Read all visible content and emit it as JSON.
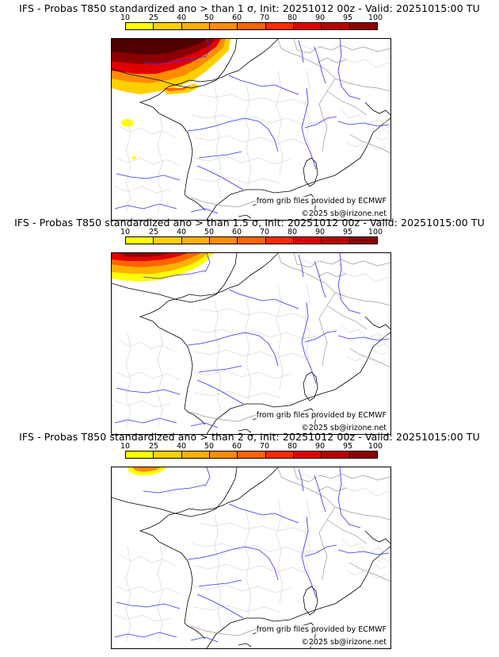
{
  "legend": {
    "ticks": [
      "10",
      "25",
      "40",
      "50",
      "60",
      "70",
      "80",
      "90",
      "95",
      "100"
    ],
    "colors": [
      "#ffff00",
      "#ffd000",
      "#ffb000",
      "#ff8c00",
      "#ff6400",
      "#ff2a00",
      "#e00000",
      "#b80000",
      "#8c0000",
      "#500000"
    ]
  },
  "panels": [
    {
      "title": "IFS - Probas T850  standardized ano > than 1 σ, Init: 20251012 00z - Valid: 20251015:00 TU",
      "source_text": "from grib files provided by ECMWF",
      "copyright_text": "©2025 sb@irizone.net"
    },
    {
      "title": "IFS - Probas T850  standardized ano > than 1.5 σ, Init: 20251012 00z - Valid: 20251015:00 TU",
      "source_text": "from grib files provided by ECMWF",
      "copyright_text": "©2025 sb@irizone.net"
    },
    {
      "title": "IFS - Probas T850  standardized ano > than 2 σ, Init: 20251012 00z - Valid: 20251015:00 TU",
      "source_text": "from grib files provided by ECMWF",
      "copyright_text": "©2025 sb@irizone.net"
    }
  ]
}
